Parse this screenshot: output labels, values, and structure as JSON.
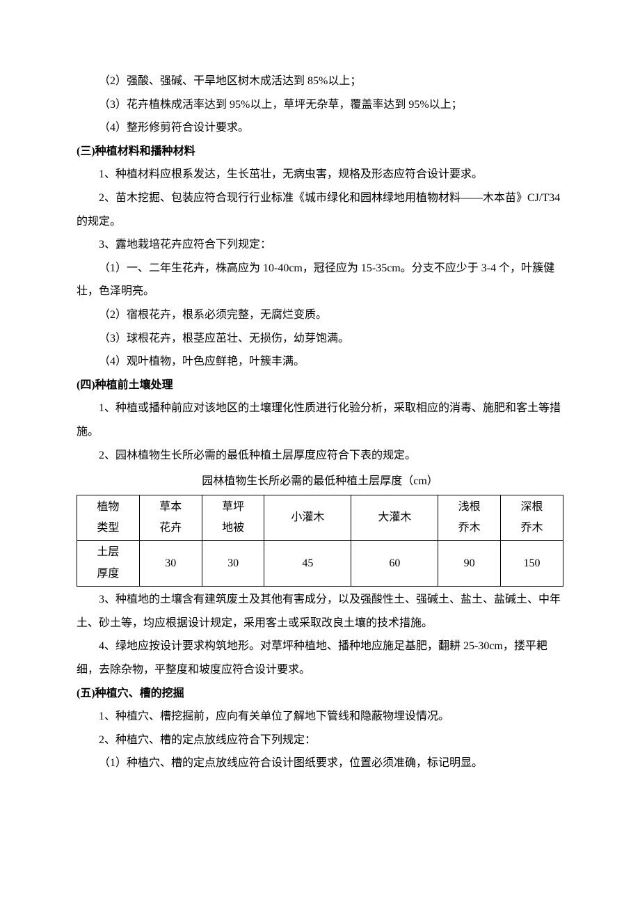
{
  "p1": "（2）强酸、强碱、干旱地区树木成活达到 85%以上；",
  "p2": "（3）花卉植株成活率达到 95%以上，草坪无杂草，覆盖率达到 95%以上；",
  "p3": "（4）整形修剪符合设计要求。",
  "h3": "(三)种植材料和播种材料",
  "p4": "1、种植材料应根系发达，生长茁壮，无病虫害，规格及形态应符合设计要求。",
  "p5": "2、苗木挖掘、包装应符合现行行业标准《城市绿化和园林绿地用植物材料——木本苗》CJ/T34 的规定。",
  "p6": "3、露地栽培花卉应符合下列规定：",
  "p7": "（1）一、二年生花卉，株高应为 10-40cm，冠径应为 15-35cm。分支不应少于 3-4 个，叶簇健壮，色泽明亮。",
  "p8": "（2）宿根花卉，根系必须完整，无腐烂变质。",
  "p9": "（3）球根花卉，根茎应茁壮、无损伤，幼芽饱满。",
  "p10": "（4）观叶植物，叶色应鲜艳，叶簇丰满。",
  "h4": "(四)种植前土壤处理",
  "p11": "1、种植或播种前应对该地区的土壤理化性质进行化验分析，采取相应的消毒、施肥和客土等措施。",
  "p12": "2、园林植物生长所必需的最低种植土层厚度应符合下表的规定。",
  "caption": "园林植物生长所必需的最低种植土层厚度（cm）",
  "table": {
    "r1c1a": "植物",
    "r1c1b": "类型",
    "r1c2a": "草本",
    "r1c2b": "花卉",
    "r1c3a": "草坪",
    "r1c3b": "地被",
    "r1c4": "小灌木",
    "r1c5": "大灌木",
    "r1c6a": "浅根",
    "r1c6b": "乔木",
    "r1c7a": "深根",
    "r1c7b": "乔木",
    "r2c1a": "土层",
    "r2c1b": "厚度",
    "r2c2": "30",
    "r2c3": "30",
    "r2c4": "45",
    "r2c5": "60",
    "r2c6": "90",
    "r2c7": "150"
  },
  "p13": "3、种植地的土壤含有建筑废土及其他有害成分，以及强酸性土、强碱土、盐土、盐碱土、中年土、砂土等，均应根据设计规定，采用客土或采取改良土壤的技术措施。",
  "p14": "4、绿地应按设计要求构筑地形。对草坪种植地、播种地应施足基肥，翻耕 25-30cm，搂平耙细，去除杂物，平整度和坡度应符合设计要求。",
  "h5": "(五)种植穴、槽的挖掘",
  "p15": "1、种植穴、槽挖掘前，应向有关单位了解地下管线和隐蔽物埋设情况。",
  "p16": "2、种植穴、槽的定点放线应符合下列规定：",
  "p17": "（1）种植穴、槽的定点放线应符合设计图纸要求，位置必须准确，标记明显。"
}
